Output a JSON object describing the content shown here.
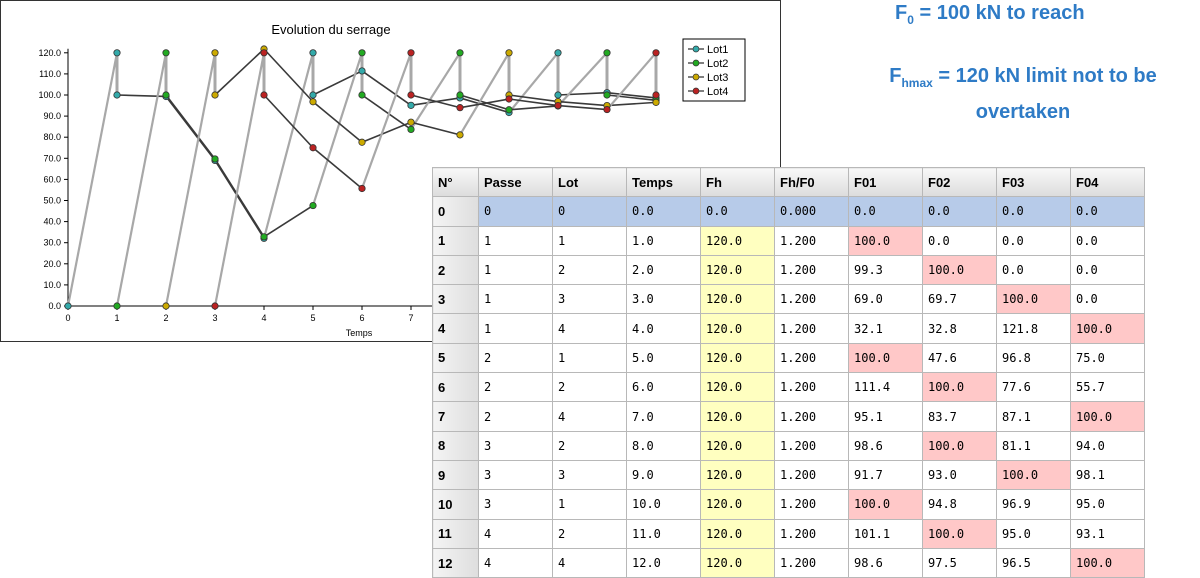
{
  "notes": {
    "line1_main": "F",
    "line1_sub": "0",
    "line1_rest": " = 100 kN to reach",
    "line2_main": "F",
    "line2_sub": "hmax",
    "line2_rest": " = 120 kN limit not to be",
    "line2_cont": "overtaken"
  },
  "chart_data": {
    "type": "line",
    "title": "Evolution du serrage",
    "xlabel": "Temps",
    "ylabel": "",
    "xlim": [
      0,
      12
    ],
    "ylim": [
      0,
      120
    ],
    "x_ticks": [
      "0",
      "1",
      "2",
      "3",
      "4",
      "5",
      "6",
      "7"
    ],
    "y_ticks": [
      "0.0",
      "10.0",
      "20.0",
      "30.0",
      "40.0",
      "50.0",
      "60.0",
      "70.0",
      "80.0",
      "90.0",
      "100.0",
      "110.0",
      "120.0"
    ],
    "legend_position": "top-right",
    "series": [
      {
        "name": "Lot1",
        "color": "#33AAAA",
        "points": [
          [
            0,
            0
          ],
          [
            1,
            120
          ],
          [
            1,
            100
          ],
          [
            2,
            99.3
          ],
          [
            3,
            69
          ],
          [
            4,
            32.1
          ],
          [
            5,
            120
          ],
          [
            5,
            100
          ],
          [
            6,
            111.4
          ],
          [
            7,
            95.1
          ],
          [
            8,
            98.6
          ],
          [
            9,
            91.7
          ],
          [
            10,
            120
          ],
          [
            10,
            100
          ],
          [
            11,
            101.1
          ],
          [
            12,
            98.6
          ]
        ]
      },
      {
        "name": "Lot2",
        "color": "#22AA22",
        "points": [
          [
            1,
            0
          ],
          [
            2,
            120
          ],
          [
            2,
            100
          ],
          [
            3,
            69.7
          ],
          [
            4,
            32.8
          ],
          [
            5,
            47.6
          ],
          [
            6,
            120
          ],
          [
            6,
            100
          ],
          [
            7,
            83.7
          ],
          [
            8,
            120
          ],
          [
            8,
            100
          ],
          [
            9,
            93
          ],
          [
            10,
            94.8
          ],
          [
            11,
            120
          ],
          [
            11,
            100
          ],
          [
            12,
            97.5
          ]
        ]
      },
      {
        "name": "Lot3",
        "color": "#CCAA00",
        "points": [
          [
            2,
            0
          ],
          [
            3,
            120
          ],
          [
            3,
            100
          ],
          [
            4,
            121.8
          ],
          [
            5,
            96.8
          ],
          [
            6,
            77.6
          ],
          [
            7,
            87.1
          ],
          [
            8,
            81.1
          ],
          [
            9,
            120
          ],
          [
            9,
            100
          ],
          [
            10,
            96.9
          ],
          [
            11,
            95
          ],
          [
            12,
            96.5
          ]
        ]
      },
      {
        "name": "Lot4",
        "color": "#BB2222",
        "points": [
          [
            3,
            0
          ],
          [
            4,
            120
          ],
          [
            4,
            100
          ],
          [
            5,
            75
          ],
          [
            6,
            55.7
          ],
          [
            7,
            120
          ],
          [
            7,
            100
          ],
          [
            8,
            94
          ],
          [
            9,
            98.1
          ],
          [
            10,
            95
          ],
          [
            11,
            93.1
          ],
          [
            12,
            120
          ],
          [
            12,
            100
          ]
        ]
      }
    ]
  },
  "table": {
    "headers": [
      "N°",
      "Passe",
      "Lot",
      "Temps",
      "Fh",
      "Fh/F0",
      "F01",
      "F02",
      "F03",
      "F04"
    ],
    "rows": [
      [
        "0",
        "0",
        "0",
        "0.0",
        "0.0",
        "0.000",
        "0.0",
        "0.0",
        "0.0",
        "0.0"
      ],
      [
        "1",
        "1",
        "1",
        "1.0",
        "120.0",
        "1.200",
        "100.0",
        "0.0",
        "0.0",
        "0.0"
      ],
      [
        "2",
        "1",
        "2",
        "2.0",
        "120.0",
        "1.200",
        "99.3",
        "100.0",
        "0.0",
        "0.0"
      ],
      [
        "3",
        "1",
        "3",
        "3.0",
        "120.0",
        "1.200",
        "69.0",
        "69.7",
        "100.0",
        "0.0"
      ],
      [
        "4",
        "1",
        "4",
        "4.0",
        "120.0",
        "1.200",
        "32.1",
        "32.8",
        "121.8",
        "100.0"
      ],
      [
        "5",
        "2",
        "1",
        "5.0",
        "120.0",
        "1.200",
        "100.0",
        "47.6",
        "96.8",
        "75.0"
      ],
      [
        "6",
        "2",
        "2",
        "6.0",
        "120.0",
        "1.200",
        "111.4",
        "100.0",
        "77.6",
        "55.7"
      ],
      [
        "7",
        "2",
        "4",
        "7.0",
        "120.0",
        "1.200",
        "95.1",
        "83.7",
        "87.1",
        "100.0"
      ],
      [
        "8",
        "3",
        "2",
        "8.0",
        "120.0",
        "1.200",
        "98.6",
        "100.0",
        "81.1",
        "94.0"
      ],
      [
        "9",
        "3",
        "3",
        "9.0",
        "120.0",
        "1.200",
        "91.7",
        "93.0",
        "100.0",
        "98.1"
      ],
      [
        "10",
        "3",
        "1",
        "10.0",
        "120.0",
        "1.200",
        "100.0",
        "94.8",
        "96.9",
        "95.0"
      ],
      [
        "11",
        "4",
        "2",
        "11.0",
        "120.0",
        "1.200",
        "101.1",
        "100.0",
        "95.0",
        "93.1"
      ],
      [
        "12",
        "4",
        "4",
        "12.0",
        "120.0",
        "1.200",
        "98.6",
        "97.5",
        "96.5",
        "100.0"
      ]
    ],
    "highlight_col": [
      null,
      6,
      7,
      8,
      9,
      6,
      7,
      9,
      7,
      8,
      6,
      7,
      9
    ]
  }
}
